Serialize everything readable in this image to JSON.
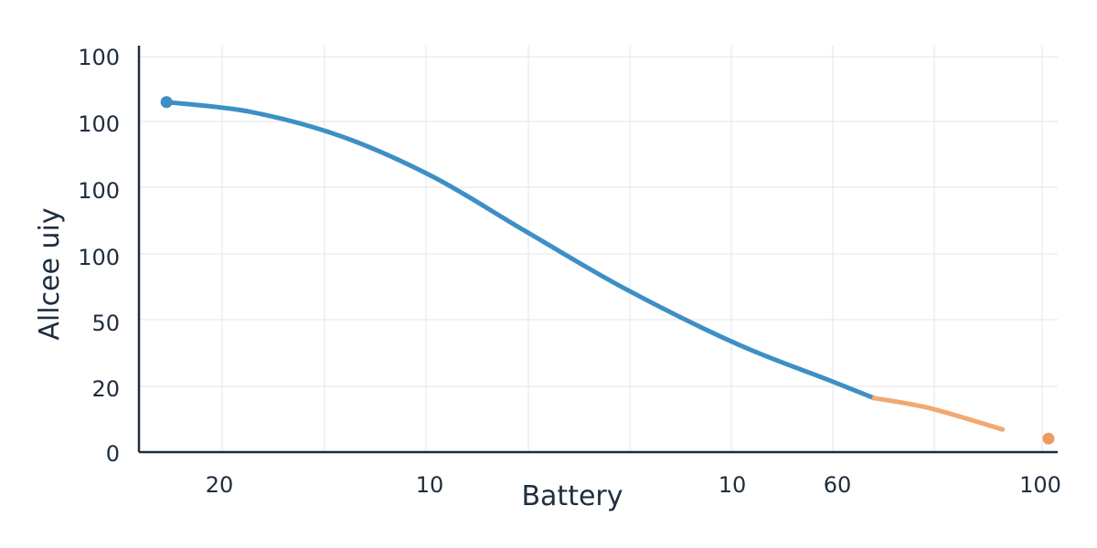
{
  "chart_data": {
    "type": "line",
    "xlabel": "Battery",
    "ylabel": "Allcee uiy",
    "y_ticks": [
      "100",
      "100",
      "100",
      "100",
      "50",
      "20",
      "0"
    ],
    "x_ticks": [
      "20",
      "10",
      "10",
      "60",
      "100"
    ],
    "grid": true,
    "series": [
      {
        "color": "#3d8fc6",
        "points": [
          {
            "x": 0.03,
            "y": 0.881
          },
          {
            "x": 0.12,
            "y": 0.857
          },
          {
            "x": 0.22,
            "y": 0.795
          },
          {
            "x": 0.32,
            "y": 0.693
          },
          {
            "x": 0.42,
            "y": 0.557
          },
          {
            "x": 0.53,
            "y": 0.41
          },
          {
            "x": 0.65,
            "y": 0.273
          },
          {
            "x": 0.75,
            "y": 0.182
          },
          {
            "x": 0.8,
            "y": 0.136
          }
        ]
      },
      {
        "color": "#f2a971",
        "points": [
          {
            "x": 0.8,
            "y": 0.136
          },
          {
            "x": 0.86,
            "y": 0.111
          },
          {
            "x": 0.94,
            "y": 0.057
          }
        ]
      }
    ],
    "markers": [
      {
        "x": 0.03,
        "y": 0.881,
        "color": "#3d8fc6"
      },
      {
        "x": 0.99,
        "y": 0.034,
        "color": "#eb9a60"
      }
    ]
  }
}
